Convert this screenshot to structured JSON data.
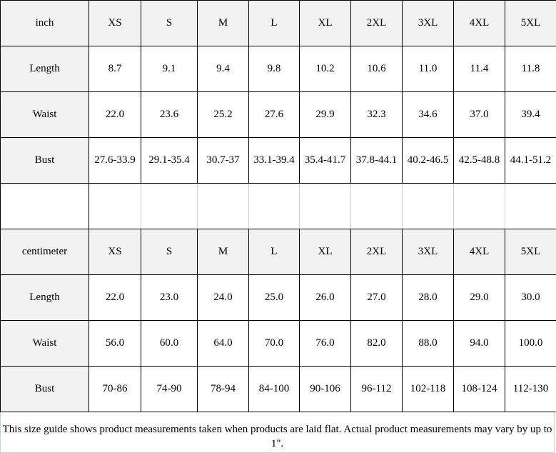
{
  "tables": [
    {
      "unit": "inch",
      "sizes": [
        "XS",
        "S",
        "M",
        "L",
        "XL",
        "2XL",
        "3XL",
        "4XL",
        "5XL"
      ],
      "rows": [
        {
          "label": "Length",
          "values": [
            "8.7",
            "9.1",
            "9.4",
            "9.8",
            "10.2",
            "10.6",
            "11.0",
            "11.4",
            "11.8"
          ]
        },
        {
          "label": "Waist",
          "values": [
            "22.0",
            "23.6",
            "25.2",
            "27.6",
            "29.9",
            "32.3",
            "34.6",
            "37.0",
            "39.4"
          ]
        },
        {
          "label": "Bust",
          "values": [
            "27.6-33.9",
            "29.1-35.4",
            "30.7-37",
            "33.1-39.4",
            "35.4-41.7",
            "37.8-44.1",
            "40.2-46.5",
            "42.5-48.8",
            "44.1-51.2"
          ]
        }
      ]
    },
    {
      "unit": "centimeter",
      "sizes": [
        "XS",
        "S",
        "M",
        "L",
        "XL",
        "2XL",
        "3XL",
        "4XL",
        "5XL"
      ],
      "rows": [
        {
          "label": "Length",
          "values": [
            "22.0",
            "23.0",
            "24.0",
            "25.0",
            "26.0",
            "27.0",
            "28.0",
            "29.0",
            "30.0"
          ]
        },
        {
          "label": "Waist",
          "values": [
            "56.0",
            "60.0",
            "64.0",
            "70.0",
            "76.0",
            "82.0",
            "88.0",
            "94.0",
            "100.0"
          ]
        },
        {
          "label": "Bust",
          "values": [
            "70-86",
            "74-90",
            "78-94",
            "84-100",
            "90-106",
            "96-112",
            "102-118",
            "108-124",
            "112-130"
          ]
        }
      ]
    }
  ],
  "note": "This size guide shows product measurements taken when products are laid flat. Actual product measurements may vary by up to 1\"."
}
